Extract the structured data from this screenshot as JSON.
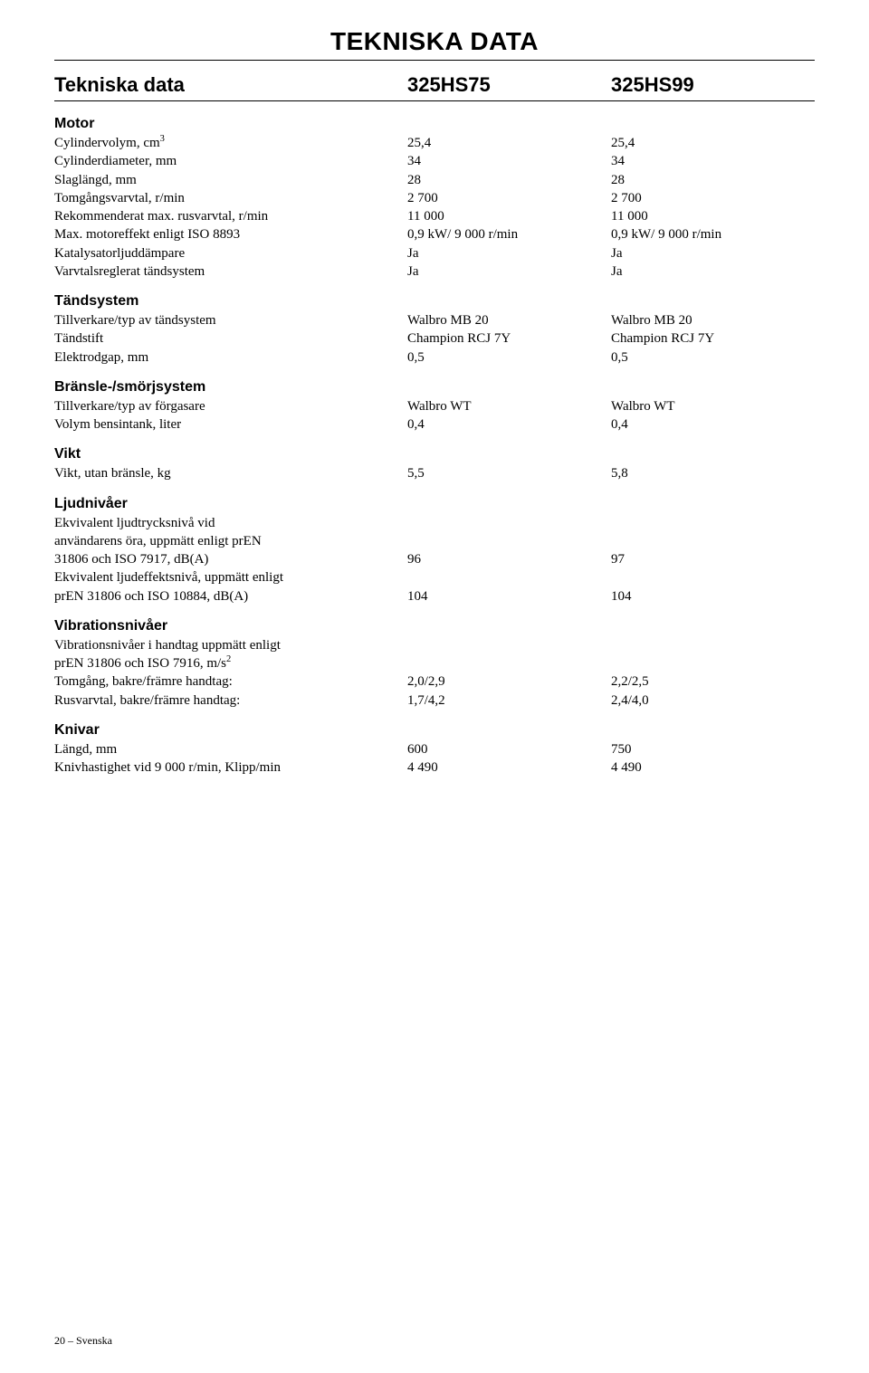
{
  "doc_title": "TEKNISKA DATA",
  "header": {
    "label": "Tekniska data",
    "col_a": "325HS75",
    "col_b": "325HS99"
  },
  "footer": "20 – Svenska",
  "sections": [
    {
      "title": "Motor",
      "rows": [
        {
          "label_html": "Cylindervolym, cm<sup>3</sup>",
          "a": "25,4",
          "b": "25,4"
        },
        {
          "label": "Cylinderdiameter, mm",
          "a": "34",
          "b": "34"
        },
        {
          "label": "Slaglängd, mm",
          "a": "28",
          "b": "28"
        },
        {
          "label": "Tomgångsvarvtal, r/min",
          "a": "2 700",
          "b": "2 700"
        },
        {
          "label": "Rekommenderat max. rusvarvtal, r/min",
          "a": "11 000",
          "b": "11 000"
        },
        {
          "label": "Max. motoreffekt enligt ISO 8893",
          "a": "0,9 kW/ 9 000 r/min",
          "b": "0,9 kW/ 9 000 r/min"
        },
        {
          "label": "Katalysatorljuddämpare",
          "a": "Ja",
          "b": "Ja"
        },
        {
          "label": "Varvtalsreglerat tändsystem",
          "a": "Ja",
          "b": "Ja"
        }
      ]
    },
    {
      "title": "Tändsystem",
      "rows": [
        {
          "label": "Tillverkare/typ av tändsystem",
          "a": "Walbro MB 20",
          "b": "Walbro MB 20"
        },
        {
          "label": "Tändstift",
          "a": "Champion RCJ 7Y",
          "b": "Champion RCJ 7Y"
        },
        {
          "label": "Elektrodgap, mm",
          "a": "0,5",
          "b": "0,5"
        }
      ]
    },
    {
      "title": "Bränsle-/smörjsystem",
      "rows": [
        {
          "label": "Tillverkare/typ av förgasare",
          "a": "Walbro WT",
          "b": "Walbro WT"
        },
        {
          "label": "Volym bensintank, liter",
          "a": "0,4",
          "b": "0,4"
        }
      ]
    },
    {
      "title": "Vikt",
      "rows": [
        {
          "label": "Vikt, utan bränsle, kg",
          "a": "5,5",
          "b": "5,8"
        }
      ]
    },
    {
      "title": "Ljudnivåer",
      "rows": [
        {
          "label": "Ekvivalent ljudtrycksnivå vid",
          "a": "",
          "b": ""
        },
        {
          "label": "användarens öra, uppmätt enligt prEN",
          "a": "",
          "b": ""
        },
        {
          "label": "31806 och ISO 7917, dB(A)",
          "a": "96",
          "b": "97"
        },
        {
          "label": "Ekvivalent ljudeffektsnivå, uppmätt enligt",
          "a": "",
          "b": ""
        },
        {
          "label": "prEN 31806 och ISO 10884, dB(A)",
          "a": "104",
          "b": "104"
        }
      ]
    },
    {
      "title": "Vibrationsnivåer",
      "rows": [
        {
          "label": "Vibrationsnivåer i handtag uppmätt enligt",
          "a": "",
          "b": ""
        },
        {
          "label_html": "prEN 31806 och ISO 7916, m/s<sup>2</sup>",
          "a": "",
          "b": ""
        },
        {
          "label": "Tomgång, bakre/främre handtag:",
          "a": "2,0/2,9",
          "b": "2,2/2,5"
        },
        {
          "label": "Rusvarvtal, bakre/främre handtag:",
          "a": "1,7/4,2",
          "b": "2,4/4,0"
        }
      ]
    },
    {
      "title": "Knivar",
      "rows": [
        {
          "label": "Längd, mm",
          "a": "600",
          "b": "750"
        },
        {
          "label": "Knivhastighet vid 9 000 r/min, Klipp/min",
          "a": "4 490",
          "b": "4 490"
        }
      ]
    }
  ]
}
